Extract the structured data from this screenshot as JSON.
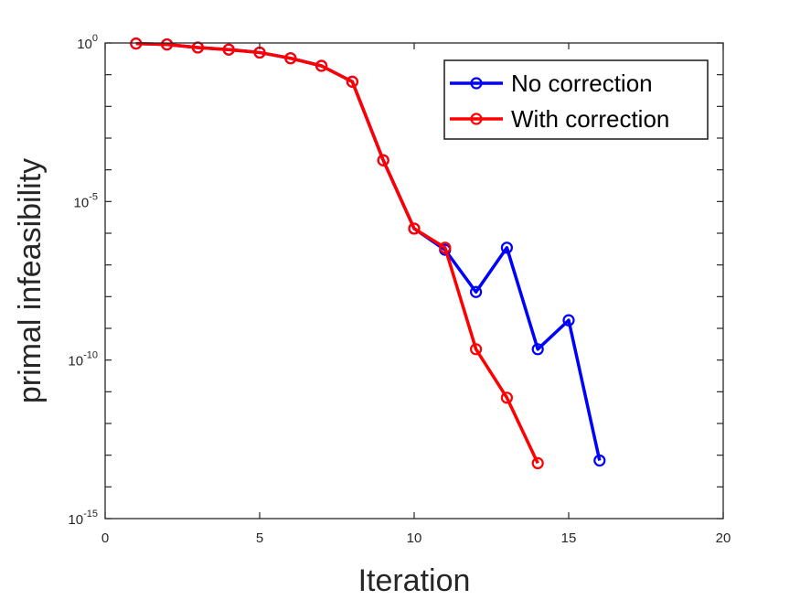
{
  "chart_data": {
    "type": "line",
    "xlabel": "Iteration",
    "ylabel": "primal infeasibility",
    "xlim": [
      0,
      20
    ],
    "ylim": [
      1e-15,
      1
    ],
    "yscale": "log",
    "grid": false,
    "legend_position": "top-right",
    "x_ticks": [
      "0",
      "5",
      "10",
      "15",
      "20"
    ],
    "series": [
      {
        "name": "No correction",
        "color": "#0000ff",
        "marker": "circle",
        "x": [
          1,
          2,
          3,
          4,
          5,
          6,
          7,
          8,
          9,
          10,
          11,
          12,
          13,
          14,
          15,
          16
        ],
        "y": [
          0.96,
          0.9,
          0.72,
          0.62,
          0.5,
          0.33,
          0.19,
          0.06,
          0.0002,
          1.4e-06,
          3e-07,
          1.4e-08,
          3.5e-07,
          2.2e-10,
          1.8e-09,
          6.8e-14
        ]
      },
      {
        "name": "With correction",
        "color": "#ff0000",
        "marker": "circle",
        "x": [
          1,
          2,
          3,
          4,
          5,
          6,
          7,
          8,
          9,
          10,
          11,
          12,
          13,
          14
        ],
        "y": [
          0.96,
          0.9,
          0.72,
          0.62,
          0.5,
          0.33,
          0.19,
          0.06,
          0.0002,
          1.4e-06,
          3.5e-07,
          2.2e-10,
          6.5e-12,
          5.6e-14
        ]
      }
    ]
  }
}
